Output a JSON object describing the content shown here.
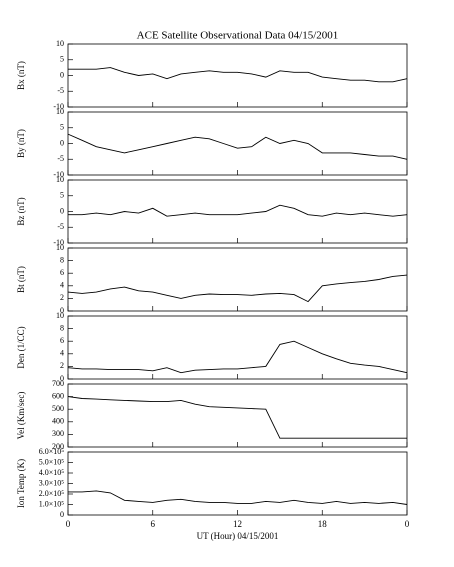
{
  "chart_data": [
    {
      "type": "line",
      "title": "ACE Satellite Observational Data  04/15/2001",
      "ylabel": "Bx (nT)",
      "color": "#000000",
      "x": [
        0,
        1,
        2,
        3,
        4,
        5,
        6,
        7,
        8,
        9,
        10,
        11,
        12,
        13,
        14,
        15,
        16,
        17,
        18,
        19,
        20,
        21,
        22,
        23,
        24
      ],
      "values": [
        2,
        2,
        2,
        2.5,
        1,
        0,
        0.5,
        -1,
        0.5,
        1,
        1.5,
        1,
        1,
        0.5,
        -0.5,
        1.5,
        1,
        1,
        -0.5,
        -1,
        -1.5,
        -1.5,
        -2,
        -2,
        -1
      ],
      "xlim": [
        0,
        24
      ],
      "xticks": [
        0,
        6,
        12,
        18,
        24
      ],
      "ylim": [
        -10,
        10
      ],
      "yticks": [
        -10,
        -5,
        0,
        5,
        10
      ]
    },
    {
      "type": "line",
      "ylabel": "By (nT)",
      "color": "#000000",
      "x": [
        0,
        1,
        2,
        3,
        4,
        5,
        6,
        7,
        8,
        9,
        10,
        11,
        12,
        13,
        14,
        15,
        16,
        17,
        18,
        19,
        20,
        21,
        22,
        23,
        24
      ],
      "values": [
        3,
        1,
        -1,
        -2,
        -3,
        -2,
        -1,
        0,
        1,
        2,
        1.5,
        0,
        -1.5,
        -1,
        2,
        0,
        1,
        0,
        -3,
        -3,
        -3,
        -3.5,
        -4,
        -4,
        -5
      ],
      "xlim": [
        0,
        24
      ],
      "xticks": [
        0,
        6,
        12,
        18,
        24
      ],
      "ylim": [
        -10,
        10
      ],
      "yticks": [
        -10,
        -5,
        0,
        5,
        10
      ]
    },
    {
      "type": "line",
      "ylabel": "Bz (nT)",
      "color": "#000000",
      "x": [
        0,
        1,
        2,
        3,
        4,
        5,
        6,
        7,
        8,
        9,
        10,
        11,
        12,
        13,
        14,
        15,
        16,
        17,
        18,
        19,
        20,
        21,
        22,
        23,
        24
      ],
      "values": [
        -1,
        -1,
        -0.5,
        -1,
        0,
        -0.5,
        1,
        -1.5,
        -1,
        -0.5,
        -1,
        -1,
        -1,
        -0.5,
        0,
        2,
        1,
        -1,
        -1.5,
        -0.5,
        -1,
        -0.5,
        -1,
        -1.5,
        -1
      ],
      "xlim": [
        0,
        24
      ],
      "xticks": [
        0,
        6,
        12,
        18,
        24
      ],
      "ylim": [
        -10,
        10
      ],
      "yticks": [
        -10,
        -5,
        0,
        5,
        10
      ]
    },
    {
      "type": "line",
      "ylabel": "Bt (nT)",
      "color": "#000000",
      "x": [
        0,
        1,
        2,
        3,
        4,
        5,
        6,
        7,
        8,
        9,
        10,
        11,
        12,
        13,
        14,
        15,
        16,
        17,
        18,
        19,
        20,
        21,
        22,
        23,
        24
      ],
      "values": [
        3,
        2.8,
        3,
        3.5,
        3.8,
        3.2,
        3,
        2.5,
        2,
        2.5,
        2.7,
        2.6,
        2.6,
        2.5,
        2.7,
        2.8,
        2.6,
        1.5,
        4,
        4.3,
        4.5,
        4.7,
        5,
        5.5,
        5.7
      ],
      "xlim": [
        0,
        24
      ],
      "xticks": [
        0,
        6,
        12,
        18,
        24
      ],
      "ylim": [
        0,
        10
      ],
      "yticks": [
        0,
        2,
        4,
        6,
        8,
        10
      ]
    },
    {
      "type": "line",
      "ylabel": "Den (1/CC)",
      "color": "#000000",
      "x": [
        0,
        1,
        2,
        3,
        4,
        5,
        6,
        7,
        8,
        9,
        10,
        11,
        12,
        13,
        14,
        15,
        16,
        17,
        18,
        19,
        20,
        21,
        22,
        23,
        24
      ],
      "values": [
        1.8,
        1.6,
        1.6,
        1.5,
        1.5,
        1.5,
        1.3,
        1.8,
        1,
        1.4,
        1.5,
        1.6,
        1.6,
        1.8,
        2,
        5.5,
        6,
        5,
        4,
        3.2,
        2.5,
        2.2,
        2,
        1.5,
        1
      ],
      "xlim": [
        0,
        24
      ],
      "xticks": [
        0,
        6,
        12,
        18,
        24
      ],
      "ylim": [
        0,
        10
      ],
      "yticks": [
        0,
        2,
        4,
        6,
        8,
        10
      ]
    },
    {
      "type": "line",
      "ylabel": "Vel (Km/sec)",
      "color": "#000000",
      "x": [
        0,
        1,
        2,
        3,
        4,
        5,
        6,
        7,
        8,
        9,
        10,
        11,
        12,
        13,
        14,
        15,
        16,
        17,
        18,
        19,
        20,
        21,
        22,
        23,
        24
      ],
      "values": [
        600,
        585,
        580,
        575,
        570,
        565,
        560,
        560,
        570,
        540,
        520,
        515,
        510,
        505,
        500,
        270,
        270,
        270,
        270,
        270,
        270,
        270,
        270,
        270,
        270
      ],
      "xlim": [
        0,
        24
      ],
      "xticks": [
        0,
        6,
        12,
        18,
        24
      ],
      "ylim": [
        200,
        700
      ],
      "yticks": [
        200,
        300,
        400,
        500,
        600,
        700
      ]
    },
    {
      "type": "line",
      "ylabel": "Ion Temp (K)",
      "xlabel": "UT (Hour)  04/15/2001",
      "color": "#000000",
      "x": [
        0,
        1,
        2,
        3,
        4,
        5,
        6,
        7,
        8,
        9,
        10,
        11,
        12,
        13,
        14,
        15,
        16,
        17,
        18,
        19,
        20,
        21,
        22,
        23,
        24
      ],
      "values": [
        220000,
        220000,
        230000,
        210000,
        140000,
        130000,
        120000,
        140000,
        150000,
        130000,
        120000,
        120000,
        110000,
        110000,
        130000,
        120000,
        140000,
        120000,
        110000,
        130000,
        110000,
        120000,
        110000,
        120000,
        100000
      ],
      "xlim": [
        0,
        24
      ],
      "xticks": [
        0,
        6,
        12,
        18,
        {
          "value": 24,
          "label": "0"
        }
      ],
      "ylim": [
        0,
        600000
      ],
      "yticks": [
        {
          "value": 0,
          "label": "0"
        },
        {
          "value": 100000,
          "label": "1.0×10⁵"
        },
        {
          "value": 200000,
          "label": "2.0×10⁵"
        },
        {
          "value": 300000,
          "label": "3.0×10⁵"
        },
        {
          "value": 400000,
          "label": "4.0×10⁵"
        },
        {
          "value": 500000,
          "label": "5.0×10⁵"
        },
        {
          "value": 600000,
          "label": "6.0×10⁵"
        }
      ]
    }
  ]
}
